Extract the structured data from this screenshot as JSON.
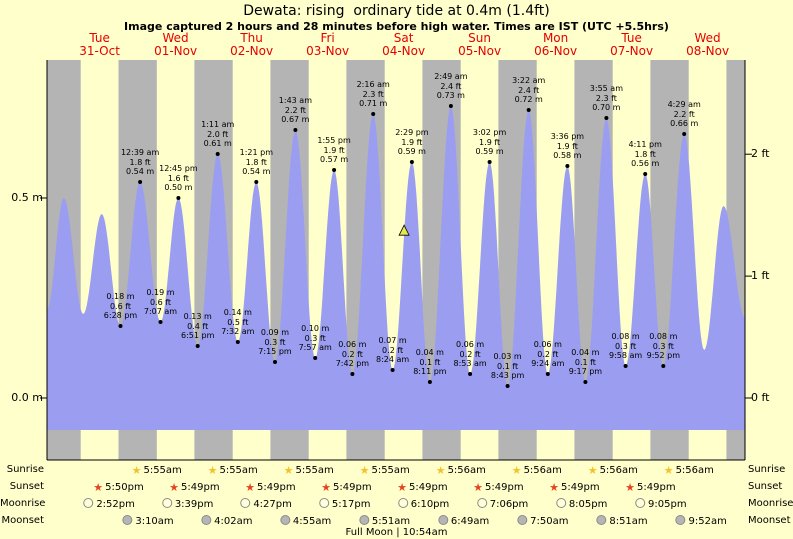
{
  "title": "Dewata: rising  ordinary tide at 0.4m (1.4ft)",
  "subtitle": "Image captured 2 hours and 28 minutes before high water. Times are IST (UTC +5.5hrs)",
  "colors": {
    "page_bg": "#ffffcc",
    "night_band": "#b4b4b4",
    "tide_fill": "#9b9ef0",
    "day_label_red": "#e60000",
    "marker_fill": "#e6e64e",
    "sunrise_star": "#f0c429",
    "sunset_star": "#e8431f",
    "moonrise_circle": "#ffffd9",
    "moonset_circle": "#b5b5b5"
  },
  "day_labels": [
    {
      "day": "Tue",
      "date": "31-Oct"
    },
    {
      "day": "Wed",
      "date": "01-Nov"
    },
    {
      "day": "Thu",
      "date": "02-Nov"
    },
    {
      "day": "Fri",
      "date": "03-Nov"
    },
    {
      "day": "Sat",
      "date": "04-Nov"
    },
    {
      "day": "Sun",
      "date": "05-Nov"
    },
    {
      "day": "Mon",
      "date": "06-Nov"
    },
    {
      "day": "Tue",
      "date": "07-Nov"
    },
    {
      "day": "Wed",
      "date": "08-Nov"
    }
  ],
  "axes": {
    "left": [
      {
        "label": "0.5 m",
        "m": 0.5
      },
      {
        "label": "0.0 m",
        "m": 0.0
      }
    ],
    "right": [
      {
        "label": "2 ft",
        "m": 0.6096
      },
      {
        "label": "1 ft",
        "m": 0.3048
      },
      {
        "label": "0 ft",
        "m": 0.0
      }
    ]
  },
  "chart_data": {
    "type": "area",
    "title": "Dewata: rising  ordinary tide at 0.4m (1.4ft)",
    "x_unit": "hours from 31-Oct 00:00 IST",
    "y_unit": "m",
    "x_range_hours": [
      -4.74,
      215.7
    ],
    "ylim_m": [
      -0.155,
      0.845
    ],
    "night_bands": [
      [
        -4.74,
        5.92
      ],
      [
        17.83,
        29.92
      ],
      [
        41.82,
        53.92
      ],
      [
        65.82,
        77.92
      ],
      [
        89.82,
        101.93
      ],
      [
        113.82,
        125.93
      ],
      [
        137.82,
        149.93
      ],
      [
        161.82,
        173.93
      ],
      [
        185.82,
        197.93
      ],
      [
        209.82,
        215.7
      ]
    ],
    "marker": {
      "t_hours": 108.02
    },
    "tide_events": [
      {
        "t": -4.74,
        "m": 0.22,
        "type": "edge"
      },
      {
        "t": 0.55,
        "m": 0.5,
        "type": "high"
      },
      {
        "t": 6.7,
        "m": 0.21,
        "type": "low"
      },
      {
        "t": 12.55,
        "m": 0.46,
        "type": "high"
      },
      {
        "t": 18.47,
        "m": 0.18,
        "type": "low",
        "lines": [
          "0.18 m",
          "0.6 ft",
          "6:28 pm"
        ]
      },
      {
        "t": 24.65,
        "m": 0.54,
        "type": "high",
        "lines": [
          "12:39 am",
          "1.8 ft",
          "0.54 m"
        ]
      },
      {
        "t": 31.12,
        "m": 0.19,
        "type": "low",
        "lines": [
          "0.19 m",
          "0.6 ft",
          "7:07 am"
        ]
      },
      {
        "t": 36.75,
        "m": 0.5,
        "type": "high",
        "lines": [
          "12:45 pm",
          "1.6 ft",
          "0.50 m"
        ]
      },
      {
        "t": 42.85,
        "m": 0.13,
        "type": "low",
        "lines": [
          "0.13 m",
          "0.4 ft",
          "6:51 pm"
        ]
      },
      {
        "t": 49.18,
        "m": 0.61,
        "type": "high",
        "lines": [
          "1:11 am",
          "2.0 ft",
          "0.61 m"
        ]
      },
      {
        "t": 55.53,
        "m": 0.14,
        "type": "low",
        "lines": [
          "0.14 m",
          "0.5 ft",
          "7:32 am"
        ]
      },
      {
        "t": 61.35,
        "m": 0.54,
        "type": "high",
        "lines": [
          "1:21 pm",
          "1.8 ft",
          "0.54 m"
        ]
      },
      {
        "t": 67.25,
        "m": 0.09,
        "type": "low",
        "lines": [
          "0.09 m",
          "0.3 ft",
          "7:15 pm"
        ]
      },
      {
        "t": 73.72,
        "m": 0.67,
        "type": "high",
        "lines": [
          "1:43 am",
          "2.2 ft",
          "0.67 m"
        ]
      },
      {
        "t": 79.95,
        "m": 0.1,
        "type": "low",
        "lines": [
          "0.10 m",
          "0.3 ft",
          "7:57 am"
        ]
      },
      {
        "t": 85.92,
        "m": 0.57,
        "type": "high",
        "lines": [
          "1:55 pm",
          "1.9 ft",
          "0.57 m"
        ]
      },
      {
        "t": 91.7,
        "m": 0.06,
        "type": "low",
        "lines": [
          "0.06 m",
          "0.2 ft",
          "7:42 pm"
        ]
      },
      {
        "t": 98.27,
        "m": 0.71,
        "type": "high",
        "lines": [
          "2:16 am",
          "2.3 ft",
          "0.71 m"
        ]
      },
      {
        "t": 104.4,
        "m": 0.07,
        "type": "low",
        "lines": [
          "0.07 m",
          "0.2 ft",
          "8:24 am"
        ]
      },
      {
        "t": 110.48,
        "m": 0.59,
        "type": "high",
        "lines": [
          "2:29 pm",
          "1.9 ft",
          "0.59 m"
        ]
      },
      {
        "t": 116.18,
        "m": 0.04,
        "type": "low",
        "lines": [
          "0.04 m",
          "0.1 ft",
          "8:11 pm"
        ]
      },
      {
        "t": 122.82,
        "m": 0.73,
        "type": "high",
        "lines": [
          "2:49 am",
          "2.4 ft",
          "0.73 m"
        ]
      },
      {
        "t": 128.88,
        "m": 0.06,
        "type": "low",
        "lines": [
          "0.06 m",
          "0.2 ft",
          "8:53 am"
        ]
      },
      {
        "t": 135.03,
        "m": 0.59,
        "type": "high",
        "lines": [
          "3:02 pm",
          "1.9 ft",
          "0.59 m"
        ]
      },
      {
        "t": 140.72,
        "m": 0.03,
        "type": "low",
        "lines": [
          "0.03 m",
          "0.1 ft",
          "8:43 pm"
        ]
      },
      {
        "t": 147.37,
        "m": 0.72,
        "type": "high",
        "lines": [
          "3:22 am",
          "2.4 ft",
          "0.72 m"
        ]
      },
      {
        "t": 153.4,
        "m": 0.06,
        "type": "low",
        "lines": [
          "0.06 m",
          "0.2 ft",
          "9:24 am"
        ]
      },
      {
        "t": 159.6,
        "m": 0.58,
        "type": "high",
        "lines": [
          "3:36 pm",
          "1.9 ft",
          "0.58 m"
        ]
      },
      {
        "t": 165.28,
        "m": 0.04,
        "type": "low",
        "lines": [
          "0.04 m",
          "0.1 ft",
          "9:17 pm"
        ]
      },
      {
        "t": 171.92,
        "m": 0.7,
        "type": "high",
        "lines": [
          "3:55 am",
          "2.3 ft",
          "0.70 m"
        ]
      },
      {
        "t": 177.97,
        "m": 0.08,
        "type": "low",
        "lines": [
          "0.08 m",
          "0.3 ft",
          "9:58 am"
        ]
      },
      {
        "t": 184.18,
        "m": 0.56,
        "type": "high",
        "lines": [
          "4:11 pm",
          "1.8 ft",
          "0.56 m"
        ]
      },
      {
        "t": 189.87,
        "m": 0.08,
        "type": "low",
        "lines": [
          "0.08 m",
          "0.3 ft",
          "9:52 pm"
        ]
      },
      {
        "t": 196.48,
        "m": 0.66,
        "type": "high",
        "lines": [
          "4:29 am",
          "2.2 ft",
          "0.66 m"
        ]
      },
      {
        "t": 202.8,
        "m": 0.12,
        "type": "low"
      },
      {
        "t": 208.9,
        "m": 0.48,
        "type": "high"
      },
      {
        "t": 215.7,
        "m": 0.2,
        "type": "edge"
      }
    ]
  },
  "astro": {
    "rows": [
      {
        "key": "sunrise",
        "label": "Sunrise",
        "icon": "star",
        "color_key": "sunrise_star",
        "entries": [
          {
            "day": 1,
            "time": "5:55am"
          },
          {
            "day": 2,
            "time": "5:55am"
          },
          {
            "day": 3,
            "time": "5:55am"
          },
          {
            "day": 4,
            "time": "5:55am"
          },
          {
            "day": 5,
            "time": "5:56am"
          },
          {
            "day": 6,
            "time": "5:56am"
          },
          {
            "day": 7,
            "time": "5:56am"
          },
          {
            "day": 8,
            "time": "5:56am"
          }
        ]
      },
      {
        "key": "sunset",
        "label": "Sunset",
        "icon": "star",
        "color_key": "sunset_star",
        "entries": [
          {
            "day": 0,
            "time": "5:50pm"
          },
          {
            "day": 1,
            "time": "5:49pm"
          },
          {
            "day": 2,
            "time": "5:49pm"
          },
          {
            "day": 3,
            "time": "5:49pm"
          },
          {
            "day": 4,
            "time": "5:49pm"
          },
          {
            "day": 5,
            "time": "5:49pm"
          },
          {
            "day": 6,
            "time": "5:49pm"
          },
          {
            "day": 7,
            "time": "5:49pm"
          }
        ]
      },
      {
        "key": "moonrise",
        "label": "Moonrise",
        "icon": "circle",
        "color_key": "moonrise_circle",
        "entries": [
          {
            "day": 0,
            "time": "2:52pm"
          },
          {
            "day": 1,
            "time": "3:39pm"
          },
          {
            "day": 2,
            "time": "4:27pm"
          },
          {
            "day": 3,
            "time": "5:17pm"
          },
          {
            "day": 4,
            "time": "6:10pm"
          },
          {
            "day": 5,
            "time": "7:06pm"
          },
          {
            "day": 6,
            "time": "8:05pm"
          },
          {
            "day": 7,
            "time": "9:05pm"
          }
        ]
      },
      {
        "key": "moonset",
        "label": "Moonset",
        "icon": "circle",
        "color_key": "moonset_circle",
        "entries": [
          {
            "day": 1,
            "time": "3:10am"
          },
          {
            "day": 2,
            "time": "4:02am"
          },
          {
            "day": 3,
            "time": "4:55am"
          },
          {
            "day": 4,
            "time": "5:51am"
          },
          {
            "day": 5,
            "time": "6:49am"
          },
          {
            "day": 6,
            "time": "7:50am"
          },
          {
            "day": 7,
            "time": "8:51am"
          },
          {
            "day": 8,
            "time": "9:52am"
          }
        ]
      }
    ],
    "footer": "Full Moon | 10:54am"
  }
}
